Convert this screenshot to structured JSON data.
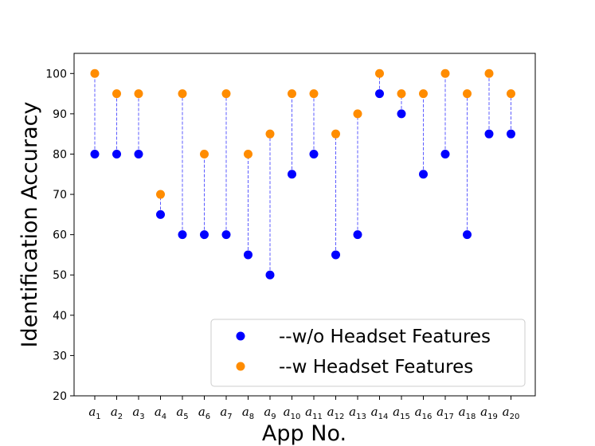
{
  "chart_data": {
    "type": "scatter",
    "title": "",
    "xlabel": "App No.",
    "ylabel": "Identification Accuracy",
    "ylim": [
      20,
      105
    ],
    "yticks": [
      20,
      30,
      40,
      50,
      60,
      70,
      80,
      90,
      100
    ],
    "categories": [
      {
        "base": "a",
        "sub": "1"
      },
      {
        "base": "a",
        "sub": "2"
      },
      {
        "base": "a",
        "sub": "3"
      },
      {
        "base": "a",
        "sub": "4"
      },
      {
        "base": "a",
        "sub": "5"
      },
      {
        "base": "a",
        "sub": "6"
      },
      {
        "base": "a",
        "sub": "7"
      },
      {
        "base": "a",
        "sub": "8"
      },
      {
        "base": "a",
        "sub": "9"
      },
      {
        "base": "a",
        "sub": "10"
      },
      {
        "base": "a",
        "sub": "11"
      },
      {
        "base": "a",
        "sub": "12"
      },
      {
        "base": "a",
        "sub": "13"
      },
      {
        "base": "a",
        "sub": "14"
      },
      {
        "base": "a",
        "sub": "15"
      },
      {
        "base": "a",
        "sub": "16"
      },
      {
        "base": "a",
        "sub": "17"
      },
      {
        "base": "a",
        "sub": "18"
      },
      {
        "base": "a",
        "sub": "19"
      },
      {
        "base": "a",
        "sub": "20"
      }
    ],
    "series": [
      {
        "name": "--w/o Headset Features",
        "color": "#0000ff",
        "values": [
          80,
          80,
          80,
          65,
          60,
          60,
          60,
          55,
          50,
          75,
          80,
          55,
          60,
          95,
          90,
          75,
          80,
          60,
          85,
          85
        ]
      },
      {
        "name": "--w Headset Features",
        "color": "#ff8c00",
        "values": [
          100,
          95,
          95,
          70,
          95,
          80,
          95,
          80,
          85,
          95,
          95,
          85,
          90,
          100,
          95,
          95,
          100,
          95,
          100,
          95
        ]
      }
    ],
    "connector_color": "#0000ff",
    "connector_style": "dashed",
    "grid": false,
    "legend_position": "lower-right"
  }
}
